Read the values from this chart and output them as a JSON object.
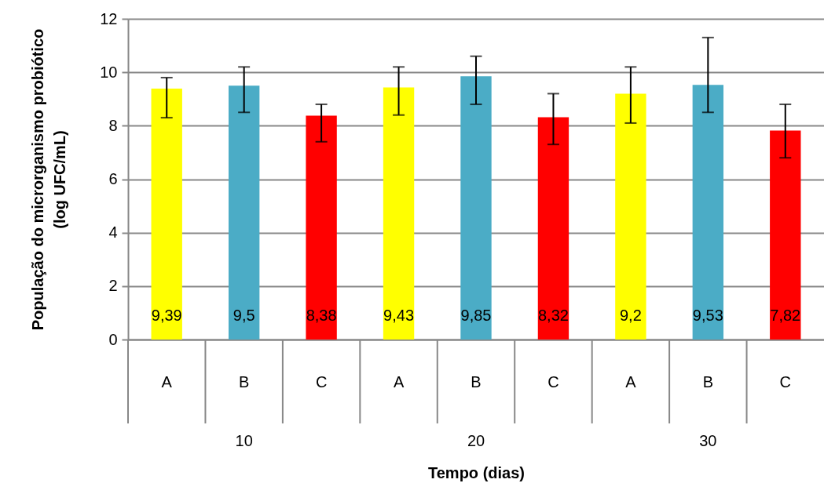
{
  "chart_data": {
    "type": "bar",
    "xlabel": "Tempo (dias)",
    "ylabel": "População  do microrganismo  probiótico\n(log UFC/mL)",
    "categories": [
      "A",
      "B",
      "C",
      "A",
      "B",
      "C",
      "A",
      "B",
      "C"
    ],
    "values": [
      9.39,
      9.5,
      8.38,
      9.43,
      9.85,
      8.32,
      9.2,
      9.53,
      7.82
    ],
    "value_labels": [
      "9,39",
      "9,5",
      "8,38",
      "9,43",
      "9,85",
      "8,32",
      "9,2",
      "9,53",
      "7,82"
    ],
    "colors": [
      "#ffff00",
      "#4bacc6",
      "#ff0000",
      "#ffff00",
      "#4bacc6",
      "#ff0000",
      "#ffff00",
      "#4bacc6",
      "#ff0000"
    ],
    "errors": [
      [
        8.3,
        9.8
      ],
      [
        8.5,
        10.2
      ],
      [
        7.4,
        8.8
      ],
      [
        8.4,
        10.2
      ],
      [
        8.8,
        10.6
      ],
      [
        7.3,
        9.2
      ],
      [
        8.1,
        10.2
      ],
      [
        8.5,
        11.3
      ],
      [
        6.8,
        8.8
      ]
    ],
    "annotations": [
      "10",
      "20",
      "30"
    ],
    "ylim": [
      0,
      12
    ],
    "yticks": [
      0,
      2,
      4,
      6,
      8,
      10,
      12
    ],
    "grid": "y"
  }
}
